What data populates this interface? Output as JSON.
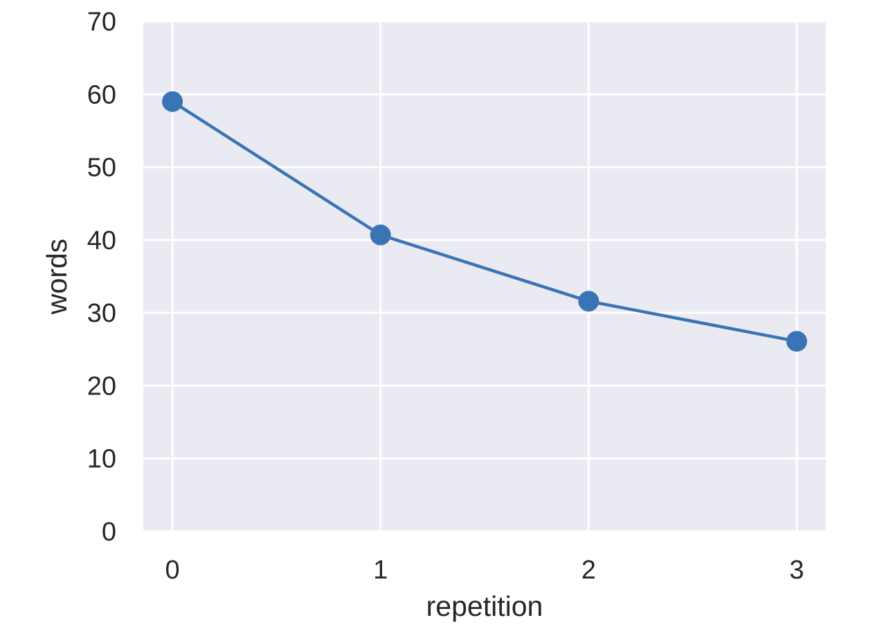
{
  "chart_data": {
    "type": "line",
    "title": "",
    "xlabel": "repetition",
    "ylabel": "words",
    "x": [
      0,
      1,
      2,
      3
    ],
    "series": [
      {
        "values": [
          59.0,
          40.7,
          31.6,
          26.1
        ]
      }
    ],
    "xticks": [
      "0",
      "1",
      "2",
      "3"
    ],
    "yticks": [
      "0",
      "10",
      "20",
      "30",
      "40",
      "50",
      "60",
      "70"
    ],
    "xlim": [
      -0.14,
      3.14
    ],
    "ylim": [
      0,
      70
    ],
    "grid": true,
    "markers": true,
    "colors": {
      "background": "#eaeaf2",
      "grid": "#ffffff",
      "line": "#3a74b4",
      "text": "#262626"
    }
  }
}
